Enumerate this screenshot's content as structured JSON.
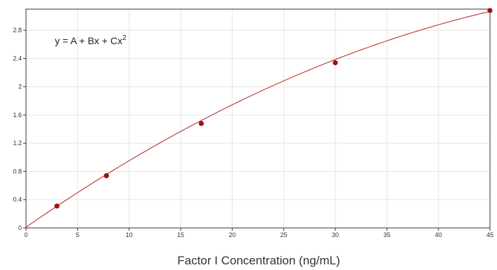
{
  "chart_data": {
    "type": "scatter",
    "title": "",
    "xlabel": "Factor I Concentration (ng/mL)",
    "ylabel": "",
    "xlim": [
      0,
      45
    ],
    "ylim": [
      0,
      3.1
    ],
    "grid": true,
    "x_ticks": [
      0,
      5,
      10,
      15,
      20,
      25,
      30,
      35,
      40,
      45
    ],
    "y_ticks": [
      0,
      0.4,
      0.8,
      1.2,
      1.6,
      2,
      2.4,
      2.8
    ],
    "y_tick_labels": [
      "0",
      "0.4",
      "0.8",
      "1.2",
      "1.6",
      "2",
      "2.4",
      "2.8"
    ],
    "annotation": {
      "prefix": "y = A + Bx + Cx",
      "superscript": "2"
    },
    "series": [
      {
        "points": [
          {
            "x": 3,
            "y": 0.31
          },
          {
            "x": 7.8,
            "y": 0.74
          },
          {
            "x": 17,
            "y": 1.48
          },
          {
            "x": 30,
            "y": 2.34
          },
          {
            "x": 45,
            "y": 3.08
          }
        ],
        "fit": {
          "A": 0.01,
          "B": 0.1017,
          "C": -0.00075
        },
        "marker_color": "#a01010",
        "line_color": "#b22222"
      }
    ]
  }
}
